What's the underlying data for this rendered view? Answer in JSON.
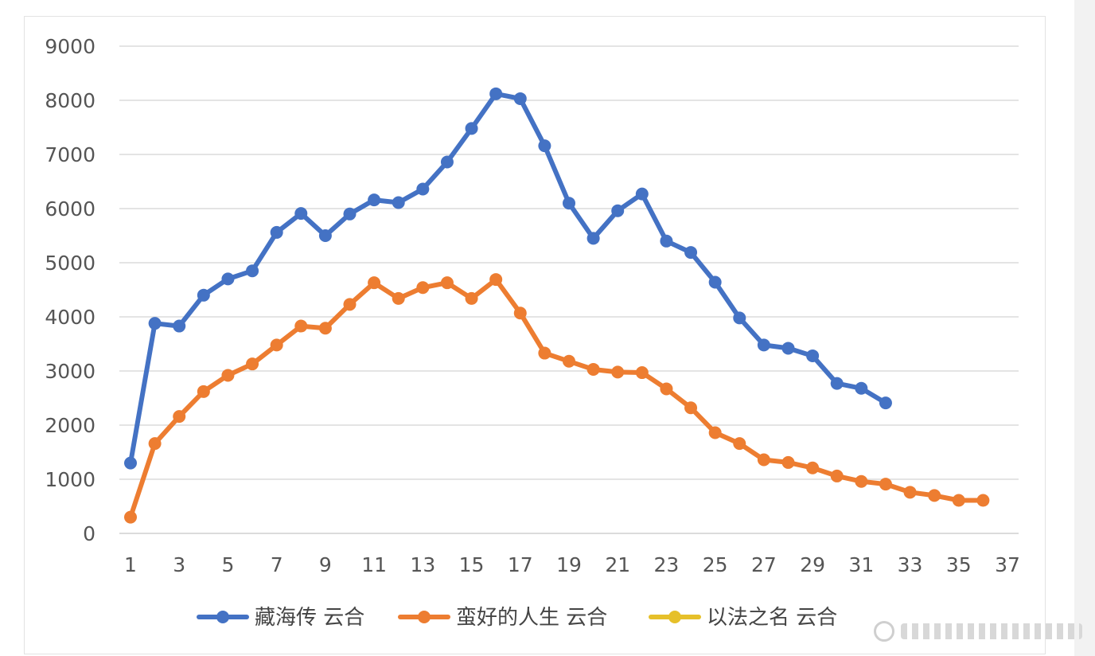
{
  "chart_data": {
    "type": "line",
    "title": "",
    "xlabel": "",
    "ylabel": "",
    "x_ticks": [
      1,
      3,
      5,
      7,
      9,
      11,
      13,
      15,
      17,
      19,
      21,
      23,
      25,
      27,
      29,
      31,
      33,
      35,
      37
    ],
    "y_ticks": [
      0,
      1000,
      2000,
      3000,
      4000,
      5000,
      6000,
      7000,
      8000,
      9000
    ],
    "xlim": [
      1,
      37
    ],
    "ylim": [
      0,
      9000
    ],
    "grid": "horizontal",
    "legend_position": "bottom",
    "series": [
      {
        "name": "藏海传 云合",
        "color": "#4472C4",
        "x": [
          1,
          2,
          3,
          4,
          5,
          6,
          7,
          8,
          9,
          10,
          11,
          12,
          13,
          14,
          15,
          16,
          17,
          18,
          19,
          20,
          21,
          22,
          23,
          24,
          25,
          26,
          27,
          28,
          29,
          30,
          31,
          32
        ],
        "values": [
          1300,
          3880,
          3830,
          4400,
          4700,
          4850,
          5560,
          5910,
          5500,
          5900,
          6160,
          6110,
          6360,
          6860,
          7480,
          8120,
          8030,
          7160,
          6100,
          5450,
          5960,
          6270,
          5400,
          5190,
          4640,
          3980,
          3480,
          3420,
          3280,
          2770,
          2680,
          2410
        ]
      },
      {
        "name": "蛮好的人生 云合",
        "color": "#ED7D31",
        "x": [
          1,
          2,
          3,
          4,
          5,
          6,
          7,
          8,
          9,
          10,
          11,
          12,
          13,
          14,
          15,
          16,
          17,
          18,
          19,
          20,
          21,
          22,
          23,
          24,
          25,
          26,
          27,
          28,
          29,
          30,
          31,
          32,
          33,
          34,
          35,
          36
        ],
        "values": [
          300,
          1660,
          2160,
          2620,
          2920,
          3130,
          3480,
          3830,
          3790,
          4230,
          4630,
          4340,
          4540,
          4630,
          4340,
          4690,
          4070,
          3330,
          3180,
          3030,
          2980,
          2970,
          2670,
          2320,
          1860,
          1660,
          1360,
          1310,
          1210,
          1060,
          960,
          910,
          760,
          700,
          610,
          610
        ]
      },
      {
        "name": "以法之名 云合",
        "color": "#E6C02A",
        "x": [],
        "values": []
      }
    ]
  }
}
